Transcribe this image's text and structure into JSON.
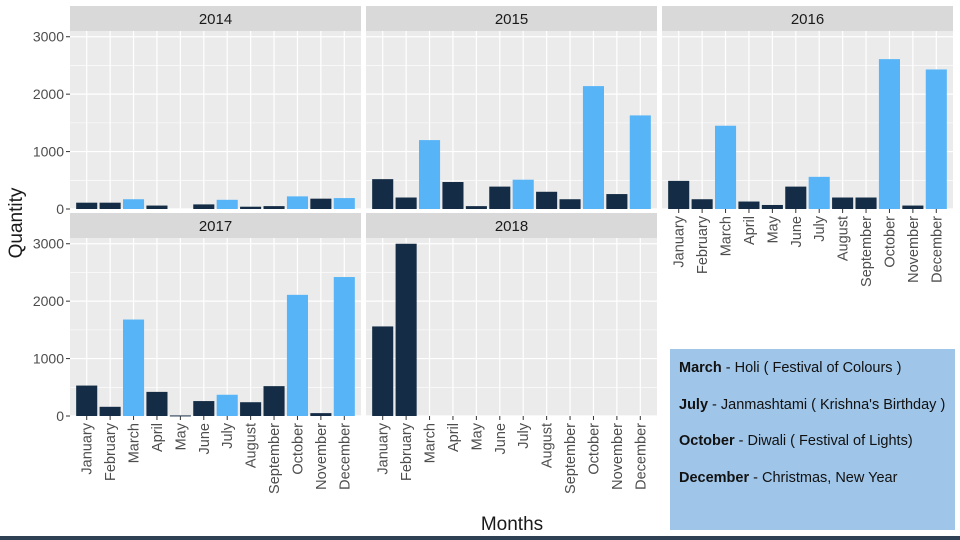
{
  "chart_data": {
    "type": "bar",
    "xlabel": "Months",
    "ylabel": "Quantity",
    "ylim": [
      0,
      3100
    ],
    "yticks": [
      0,
      1000,
      2000,
      3000
    ],
    "grid": true,
    "months": [
      "January",
      "February",
      "March",
      "April",
      "May",
      "June",
      "July",
      "August",
      "September",
      "October",
      "November",
      "December"
    ],
    "highlight_months": [
      "March",
      "July",
      "October",
      "December"
    ],
    "colors": {
      "normal": "#142c45",
      "festival": "#56b4f7",
      "strip": "#d9d9d9",
      "panel": "#ebebeb",
      "grid": "#ffffff"
    },
    "panels": [
      {
        "year": "2014",
        "values": [
          110,
          110,
          170,
          60,
          0,
          80,
          160,
          40,
          50,
          220,
          180,
          190
        ]
      },
      {
        "year": "2015",
        "values": [
          520,
          200,
          1200,
          470,
          50,
          390,
          510,
          300,
          170,
          2140,
          260,
          1630
        ]
      },
      {
        "year": "2016",
        "values": [
          490,
          170,
          1450,
          130,
          70,
          390,
          560,
          200,
          200,
          2610,
          60,
          2430
        ]
      },
      {
        "year": "2017",
        "values": [
          530,
          160,
          1680,
          420,
          10,
          260,
          370,
          240,
          520,
          2110,
          50,
          2420
        ]
      },
      {
        "year": "2018",
        "values": [
          1560,
          3000,
          0,
          0,
          0,
          0,
          0,
          0,
          0,
          0,
          0,
          0
        ]
      }
    ]
  },
  "legend": {
    "items": [
      {
        "month": "March",
        "event": " - Holi ( Festival of Colours )"
      },
      {
        "month": "July",
        "event": " - Janmashtami ( Krishna's Birthday )"
      },
      {
        "month": "October",
        "event": " - Diwali ( Festival of Lights)"
      },
      {
        "month": "December",
        "event": " - Christmas, New Year"
      }
    ]
  }
}
